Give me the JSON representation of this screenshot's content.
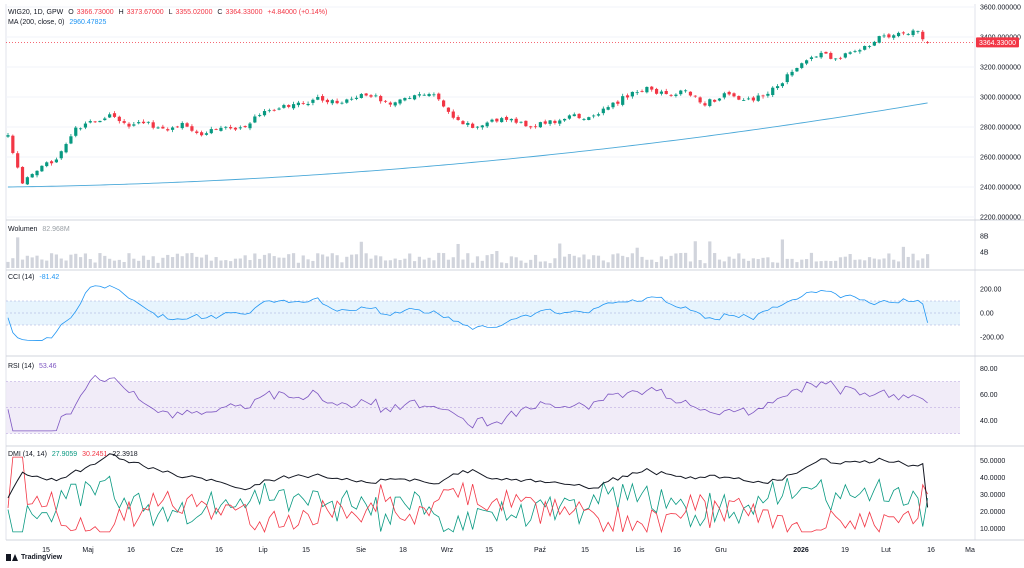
{
  "main_legend": {
    "symbol": "WIG20, 1D, GPW",
    "o_label": "O",
    "o": "3366.73000",
    "h_label": "H",
    "h": "3373.67000",
    "l_label": "L",
    "l": "3355.02000",
    "c_label": "C",
    "c": "3364.33000",
    "change": "+4.84000 (+0.14%)",
    "ma_label": "MA (200, close, 0)",
    "ma_value": "2960.47825"
  },
  "volume_legend": {
    "label": "Wolumen",
    "value": "82.968M"
  },
  "cci_legend": {
    "label": "CCI (14)",
    "value": "-81.42"
  },
  "rsi_legend": {
    "label": "RSI (14)",
    "value": "53.46"
  },
  "dmi_legend": {
    "label": "DMI (14, 14)",
    "plus": "27.9059",
    "minus": "30.2451",
    "adx": "22.3918"
  },
  "branding": "TradingView",
  "colors": {
    "up": "#089981",
    "down": "#f23645",
    "ma": "#4aa8d8",
    "cci": "#2196f3",
    "rsi": "#7e57c2",
    "dmi_plus": "#089981",
    "dmi_minus": "#f23645",
    "adx": "#131722",
    "volume": "#d1d4dc"
  },
  "chart_data": [
    {
      "type": "candlestick",
      "title": "WIG20, 1D, GPW",
      "y_ticks": [
        "2200.000000",
        "2400.000000",
        "2600.000000",
        "2800.000000",
        "3000.000000",
        "3200.000000",
        "3400.000000",
        "3600.000000"
      ],
      "ylim": [
        2200,
        3600
      ],
      "x_labels": [
        "15",
        "Maj",
        "16",
        "Cze",
        "16",
        "Lip",
        "15",
        "Sie",
        "18",
        "Wrz",
        "15",
        "Paź",
        "15",
        "Lis",
        "16",
        "Gru",
        "2026",
        "19",
        "Lut",
        "16",
        "Ma"
      ],
      "last_price_label": "3364.33000",
      "close_anchors": [
        [
          0,
          2740
        ],
        [
          3,
          2430
        ],
        [
          6,
          2500
        ],
        [
          10,
          2600
        ],
        [
          14,
          2780
        ],
        [
          18,
          2840
        ],
        [
          22,
          2880
        ],
        [
          25,
          2790
        ],
        [
          28,
          2840
        ],
        [
          32,
          2780
        ],
        [
          36,
          2820
        ],
        [
          40,
          2760
        ],
        [
          44,
          2800
        ],
        [
          48,
          2790
        ],
        [
          52,
          2880
        ],
        [
          56,
          2930
        ],
        [
          60,
          2950
        ],
        [
          64,
          2990
        ],
        [
          68,
          2960
        ],
        [
          72,
          3010
        ],
        [
          76,
          3000
        ],
        [
          80,
          2950
        ],
        [
          84,
          3020
        ],
        [
          88,
          3010
        ],
        [
          92,
          2850
        ],
        [
          96,
          2800
        ],
        [
          100,
          2840
        ],
        [
          104,
          2850
        ],
        [
          108,
          2810
        ],
        [
          112,
          2830
        ],
        [
          116,
          2870
        ],
        [
          120,
          2860
        ],
        [
          124,
          2930
        ],
        [
          128,
          3010
        ],
        [
          132,
          3060
        ],
        [
          136,
          3010
        ],
        [
          140,
          3040
        ],
        [
          144,
          2960
        ],
        [
          148,
          3010
        ],
        [
          152,
          2980
        ],
        [
          156,
          3000
        ],
        [
          160,
          3100
        ],
        [
          164,
          3240
        ],
        [
          168,
          3280
        ],
        [
          172,
          3260
        ],
        [
          176,
          3320
        ],
        [
          180,
          3390
        ],
        [
          184,
          3420
        ],
        [
          188,
          3430
        ],
        [
          190,
          3364.33
        ]
      ],
      "ma200": {
        "name": "MA (200, close, 0)",
        "start": 2400,
        "end": 2960.47825
      },
      "volume": {
        "label": "Wolumen",
        "y_ticks": [
          "4B",
          "8B"
        ],
        "ylim": [
          0,
          10
        ]
      }
    },
    {
      "type": "line",
      "name": "CCI (14)",
      "y_ticks": [
        "-200.00",
        "0.00",
        "200.00"
      ],
      "band": [
        -100,
        100
      ],
      "ylim": [
        -300,
        300
      ],
      "last_value": -81.42
    },
    {
      "type": "line",
      "name": "RSI (14)",
      "y_ticks": [
        "40.00",
        "60.00",
        "80.00"
      ],
      "band": [
        30,
        70
      ],
      "ylim": [
        25,
        85
      ],
      "last_value": 53.46
    },
    {
      "type": "line",
      "name": "DMI (14, 14)",
      "y_ticks": [
        "10.0000",
        "20.0000",
        "30.0000",
        "40.0000",
        "50.0000"
      ],
      "ylim": [
        5,
        55
      ],
      "series": [
        {
          "name": "+DI",
          "last": 27.9059
        },
        {
          "name": "-DI",
          "last": 30.2451
        },
        {
          "name": "ADX",
          "last": 22.3918
        }
      ]
    }
  ]
}
